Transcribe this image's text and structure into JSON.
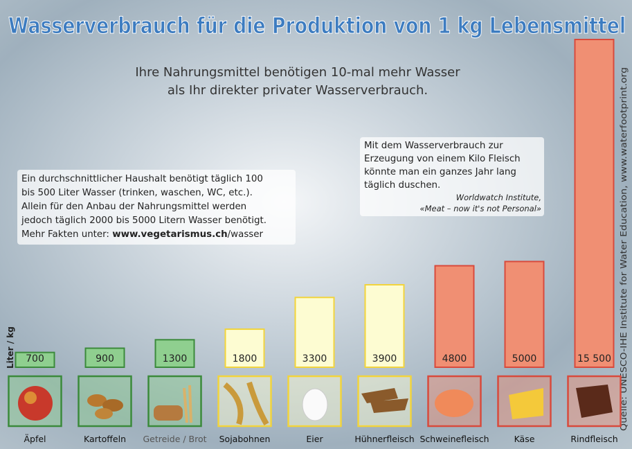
{
  "title": "Wasserverbrauch für die Produktion von 1 kg Lebensmittel",
  "subtitle": [
    "Ihre Nahrungsmittel benötigen 10-mal mehr Wasser",
    "als Ihr direkter privater Wasserverbrauch."
  ],
  "info": {
    "lines": [
      "Ein durchschnittlicher Haushalt benötigt täglich 100",
      "bis 500 Liter Wasser (trinken, waschen, WC, etc.).",
      "Allein für den Anbau der Nahrungsmittel werden",
      "jedoch täglich 2000 bis 5000 Litern Wasser benötigt."
    ],
    "more": "Mehr Fakten unter:",
    "url": "www.vegetarismus.ch",
    "url_path": "/wasser"
  },
  "quote": {
    "lines": [
      "Mit dem Wasserverbrauch zur",
      "Erzeugung von einem Kilo Fleisch",
      "könnte man ein ganzes Jahr lang",
      "täglich duschen."
    ],
    "source": [
      "Worldwatch Institute,",
      "«Meat – now it's not Personal»"
    ]
  },
  "credit": "Quelle: UNESCO-IHE Institute for Water Education, www.waterfootprint.org",
  "chart_data": {
    "type": "bar",
    "y_label": "Liter / kg",
    "categories": [
      "Äpfel",
      "Kartoffeln",
      "Getreide / Brot",
      "Sojabohnen",
      "Eier",
      "Hühnerfleisch",
      "Schweinefleisch",
      "Käse",
      "Rindfleisch"
    ],
    "values": [
      700,
      900,
      1300,
      1800,
      3300,
      3900,
      4800,
      5000,
      15500
    ],
    "value_labels": [
      "700",
      "900",
      "1300",
      "1800",
      "3300",
      "3900",
      "4800",
      "5000",
      "15 500"
    ],
    "colors": [
      "#8fcf8f",
      "#8fcf8f",
      "#8fcf8f",
      "#fdfcd2",
      "#fdfcd2",
      "#fdfcd2",
      "#f08f73",
      "#f08f73",
      "#f08f73"
    ],
    "border_colors": [
      "#3b8a3b",
      "#3b8a3b",
      "#3b8a3b",
      "#f2d43c",
      "#f2d43c",
      "#f2d43c",
      "#d84a3c",
      "#d84a3c",
      "#d84a3c"
    ]
  }
}
